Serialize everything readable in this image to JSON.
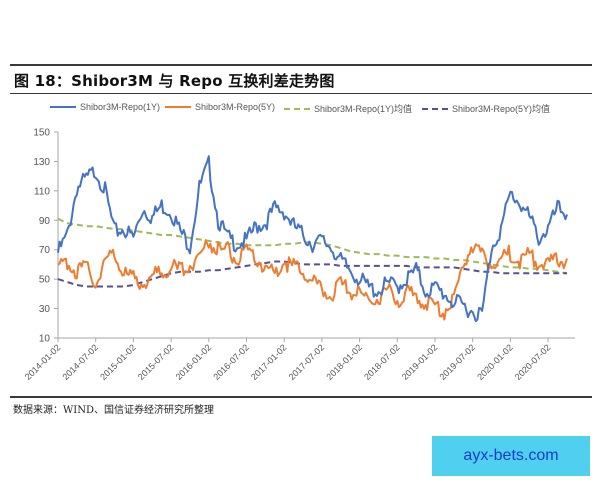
{
  "figure": {
    "title": "图 18：Shibor3M 与 Repo 互换利差走势图",
    "source": "数据来源：WIND、国信证券经济研究所整理"
  },
  "watermark": {
    "text": "ayx-bets.com",
    "bg": "#4fd0ee",
    "color": "#1a3ad0"
  },
  "chart_data": {
    "type": "line",
    "title": "Shibor3M 与 Repo 互换利差走势图",
    "xlabel": "",
    "ylabel": "",
    "ylim": [
      10,
      150
    ],
    "yticks": [
      10,
      30,
      50,
      70,
      90,
      110,
      130,
      150
    ],
    "xticks": [
      "2014-01-02",
      "2014-07-02",
      "2015-01-02",
      "2015-07-02",
      "2016-01-02",
      "2016-07-02",
      "2017-01-02",
      "2017-07-02",
      "2018-01-02",
      "2018-07-02",
      "2019-01-02",
      "2019-07-02",
      "2020-01-02",
      "2020-07-02"
    ],
    "grid": false,
    "legend_position": "top",
    "x": [
      0,
      0.25,
      0.5,
      0.75,
      1,
      1.25,
      1.5,
      1.75,
      2,
      2.25,
      2.5,
      2.75,
      3,
      3.25,
      3.5,
      3.75,
      4,
      4.25,
      4.5,
      4.75,
      5,
      5.25,
      5.5,
      5.75,
      6,
      6.25,
      6.5,
      6.75,
      7,
      7.25,
      7.5,
      7.75,
      8,
      8.25,
      8.5,
      8.75,
      9,
      9.25,
      9.5,
      9.75,
      10,
      10.25,
      10.5,
      10.75,
      11,
      11.25,
      11.5,
      11.75,
      12,
      12.25,
      12.5,
      12.75,
      13,
      13.25,
      13.5
    ],
    "series": [
      {
        "name": "Shibor3M-Repo(1Y)",
        "color": "#4472c4",
        "dash": "solid",
        "values": [
          68,
          80,
          112,
          118,
          124,
          110,
          82,
          84,
          78,
          98,
          92,
          100,
          96,
          82,
          73,
          112,
          128,
          90,
          78,
          74,
          76,
          86,
          88,
          98,
          96,
          86,
          80,
          74,
          76,
          72,
          62,
          56,
          50,
          44,
          42,
          47,
          45,
          50,
          56,
          42,
          44,
          40,
          34,
          32,
          28,
          26,
          72,
          84,
          108,
          102,
          92,
          78,
          84,
          98,
          94
        ]
      },
      {
        "name": "Shibor3M-Repo(5Y)",
        "color": "#ed7d31",
        "dash": "solid",
        "values": [
          56,
          62,
          55,
          58,
          48,
          62,
          68,
          54,
          50,
          48,
          52,
          56,
          58,
          56,
          60,
          66,
          76,
          70,
          70,
          62,
          68,
          64,
          58,
          54,
          62,
          58,
          56,
          48,
          42,
          40,
          46,
          42,
          40,
          36,
          38,
          42,
          36,
          40,
          38,
          34,
          32,
          28,
          38,
          60,
          74,
          66,
          60,
          64,
          68,
          62,
          66,
          60,
          60,
          62,
          64
        ]
      },
      {
        "name": "Shibor3M-Repo(1Y)均值",
        "color": "#9bbb59",
        "dash": "dashed",
        "values": [
          91,
          88,
          87,
          86,
          86,
          85,
          84,
          84,
          83,
          82,
          81,
          80,
          80,
          79,
          78,
          77,
          76,
          75,
          74,
          74,
          73,
          73,
          73,
          73,
          74,
          74,
          75,
          75,
          74,
          73,
          71,
          69,
          68,
          67,
          67,
          66,
          66,
          65,
          65,
          65,
          64,
          64,
          63,
          63,
          62,
          61,
          60,
          59,
          58,
          58,
          57,
          57,
          56,
          55,
          54
        ]
      },
      {
        "name": "Shibor3M-Repo(5Y)均值",
        "color": "#5b4f8f",
        "dash": "dashed",
        "values": [
          50,
          48,
          46,
          45,
          45,
          45,
          45,
          45,
          46,
          48,
          50,
          52,
          54,
          55,
          55,
          55,
          56,
          56,
          57,
          58,
          59,
          60,
          61,
          62,
          62,
          61,
          60,
          60,
          60,
          60,
          59,
          59,
          59,
          59,
          59,
          59,
          59,
          59,
          58,
          58,
          58,
          58,
          58,
          57,
          56,
          55,
          55,
          54,
          54,
          54,
          54,
          54,
          54,
          54,
          54
        ]
      }
    ]
  }
}
